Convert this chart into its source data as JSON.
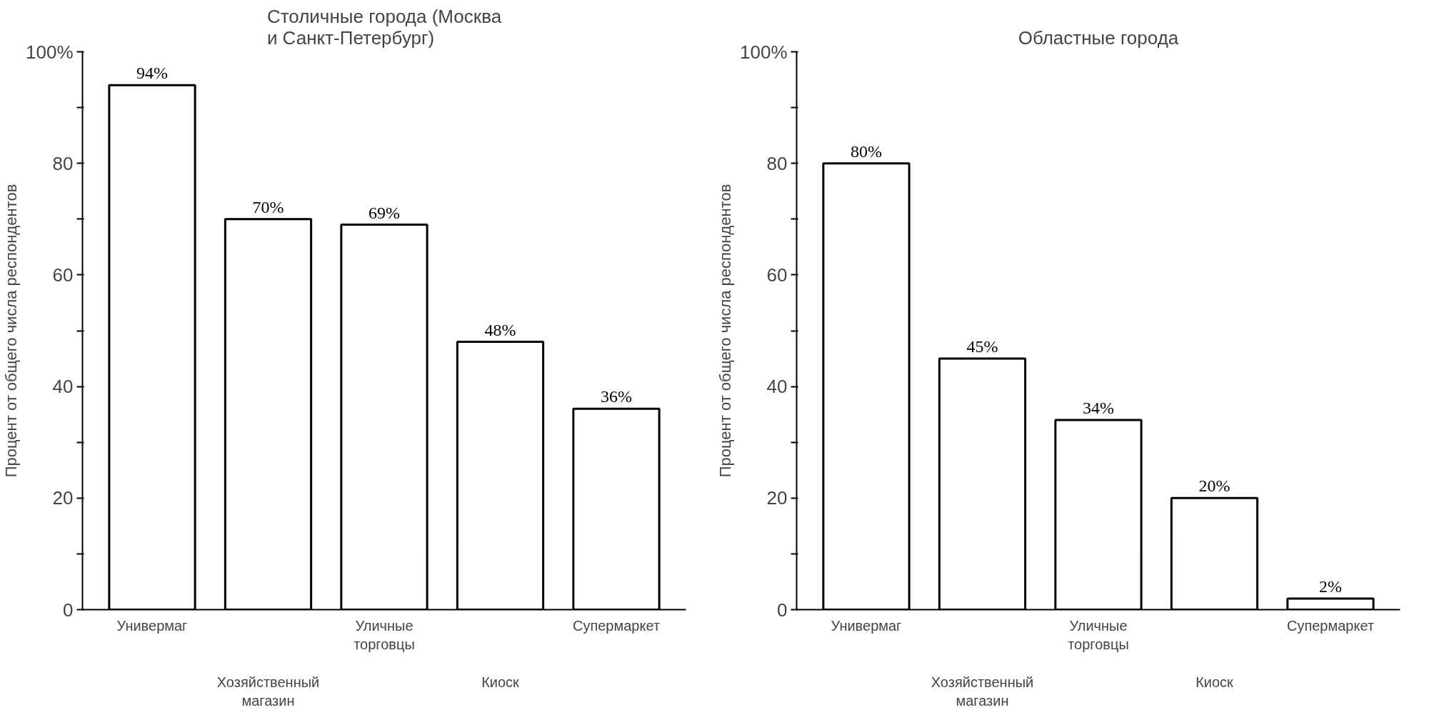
{
  "chart_data": [
    {
      "type": "bar",
      "title": "Столичные города (Москва\nи Санкт-Петербург)",
      "ylabel": "Процент от общего числа респондентов",
      "categories": [
        "Универмаг",
        "Хозяйственный\nмагазин",
        "Уличные\nторговцы",
        "Киоск",
        "Супермаркет"
      ],
      "values": [
        94,
        70,
        69,
        48,
        36
      ],
      "value_labels": [
        "94%",
        "70%",
        "69%",
        "48%",
        "36%"
      ],
      "color": "#ffffff",
      "ylim": [
        0,
        100
      ],
      "yticks": [
        0,
        {
          "value": 10,
          "label": null
        },
        20,
        {
          "value": 30,
          "label": null
        },
        40,
        {
          "value": 50,
          "label": null
        },
        60,
        {
          "value": 70,
          "label": null
        },
        80,
        {
          "value": 90,
          "label": null
        },
        {
          "value": 100,
          "label": "100%"
        }
      ],
      "grid": false
    },
    {
      "type": "bar",
      "title": "Областные города",
      "ylabel": "Процент от общего числа респондентов",
      "categories": [
        "Универмаг",
        "Хозяйственный\nмагазин",
        "Уличные\nторговцы",
        "Киоск",
        "Супермаркет"
      ],
      "values": [
        80,
        45,
        34,
        20,
        2
      ],
      "value_labels": [
        "80%",
        "45%",
        "34%",
        "20%",
        "2%"
      ],
      "color": "#ffffff",
      "ylim": [
        0,
        100
      ],
      "yticks": [
        0,
        {
          "value": 10,
          "label": null
        },
        20,
        {
          "value": 30,
          "label": null
        },
        40,
        {
          "value": 50,
          "label": null
        },
        60,
        {
          "value": 70,
          "label": null
        },
        80,
        {
          "value": 90,
          "label": null
        },
        {
          "value": 100,
          "label": "100%"
        }
      ],
      "grid": false
    }
  ]
}
